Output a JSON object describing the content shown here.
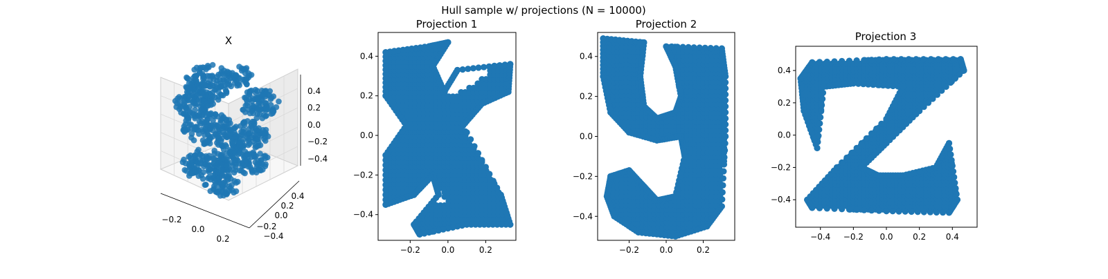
{
  "suptitle": "Hull sample w/ projections (N = 10000)",
  "colors": {
    "points": "#1f77b4",
    "pane": "#f2f2f2",
    "grid": "#d9d9d9"
  },
  "chart_data": [
    {
      "type": "scatter3d",
      "title": "X",
      "xlim": [
        -0.33,
        0.33
      ],
      "ylim": [
        -0.45,
        0.45
      ],
      "zlim": [
        -0.5,
        0.5
      ],
      "xticks": [
        -0.2,
        0.0,
        0.2
      ],
      "yticks": [
        -0.4,
        -0.2,
        0.0,
        0.2,
        0.4
      ],
      "zticks": [
        -0.4,
        -0.2,
        0.0,
        0.2,
        0.4
      ],
      "grid": true
    },
    {
      "type": "scatter",
      "title": "Projection 1",
      "xlim": [
        -0.37,
        0.36
      ],
      "ylim": [
        -0.53,
        0.52
      ],
      "xticks": [
        -0.2,
        0.0,
        0.2
      ],
      "yticks": [
        -0.4,
        -0.2,
        0.0,
        0.2,
        0.4
      ],
      "shape": "letter x",
      "outline": [
        [
          -0.33,
          0.42
        ],
        [
          -0.1,
          0.45
        ],
        [
          0.0,
          0.47
        ],
        [
          -0.08,
          0.35
        ],
        [
          -0.02,
          0.22
        ],
        [
          0.05,
          0.33
        ],
        [
          0.33,
          0.36
        ],
        [
          0.32,
          0.22
        ],
        [
          0.18,
          0.16
        ],
        [
          0.08,
          0.05
        ],
        [
          0.28,
          -0.3
        ],
        [
          0.33,
          -0.45
        ],
        [
          0.1,
          -0.45
        ],
        [
          -0.15,
          -0.5
        ],
        [
          -0.18,
          -0.45
        ],
        [
          -0.05,
          -0.3
        ],
        [
          -0.08,
          -0.2
        ],
        [
          -0.18,
          -0.3
        ],
        [
          -0.33,
          -0.35
        ],
        [
          -0.33,
          -0.1
        ],
        [
          -0.22,
          0.05
        ],
        [
          -0.33,
          0.2
        ]
      ],
      "holes": [
        [
          [
            -0.08,
            0.36
          ],
          [
            0.05,
            0.34
          ],
          [
            0.22,
            0.33
          ],
          [
            0.2,
            0.3
          ],
          [
            0.07,
            0.22
          ],
          [
            0.02,
            0.2
          ],
          [
            -0.02,
            0.22
          ]
        ],
        [
          [
            -0.15,
            -0.28
          ],
          [
            -0.1,
            -0.2
          ],
          [
            -0.05,
            -0.26
          ],
          [
            0.0,
            -0.35
          ],
          [
            -0.08,
            -0.34
          ],
          [
            -0.22,
            -0.36
          ]
        ]
      ]
    },
    {
      "type": "scatter",
      "title": "Projection 2",
      "xlim": [
        -0.37,
        0.37
      ],
      "ylim": [
        -0.52,
        0.52
      ],
      "xticks": [
        -0.2,
        0.0,
        0.2
      ],
      "yticks": [
        -0.4,
        -0.2,
        0.0,
        0.2,
        0.4
      ],
      "shape": "letter y",
      "outline": [
        [
          -0.34,
          0.49
        ],
        [
          -0.12,
          0.47
        ],
        [
          -0.14,
          0.3
        ],
        [
          -0.12,
          0.15
        ],
        [
          -0.05,
          0.09
        ],
        [
          0.05,
          0.12
        ],
        [
          0.08,
          0.2
        ],
        [
          0.05,
          0.35
        ],
        [
          0.0,
          0.45
        ],
        [
          0.3,
          0.44
        ],
        [
          0.32,
          0.3
        ],
        [
          0.32,
          0.0
        ],
        [
          0.3,
          -0.35
        ],
        [
          0.22,
          -0.45
        ],
        [
          0.05,
          -0.5
        ],
        [
          -0.15,
          -0.48
        ],
        [
          -0.28,
          -0.4
        ],
        [
          -0.32,
          -0.3
        ],
        [
          -0.3,
          -0.2
        ],
        [
          -0.2,
          -0.17
        ],
        [
          -0.12,
          -0.25
        ],
        [
          -0.05,
          -0.32
        ],
        [
          0.05,
          -0.3
        ],
        [
          0.1,
          -0.1
        ],
        [
          0.08,
          0.0
        ],
        [
          -0.05,
          -0.02
        ],
        [
          -0.2,
          0.02
        ],
        [
          -0.3,
          0.12
        ],
        [
          -0.34,
          0.3
        ]
      ],
      "holes": [
        [
          [
            -0.14,
            0.42
          ],
          [
            -0.06,
            0.3
          ],
          [
            -0.05,
            0.2
          ],
          [
            -0.05,
            0.1
          ],
          [
            -0.12,
            0.15
          ],
          [
            -0.12,
            0.35
          ]
        ]
      ]
    },
    {
      "type": "scatter",
      "title": "Projection 3",
      "xlim": [
        -0.55,
        0.55
      ],
      "ylim": [
        -0.57,
        0.55
      ],
      "xticks": [
        -0.4,
        -0.2,
        0.0,
        0.2,
        0.4
      ],
      "yticks": [
        -0.4,
        -0.2,
        0.0,
        0.2,
        0.4
      ],
      "shape": "letter z",
      "outline": [
        [
          -0.45,
          0.45
        ],
        [
          0.0,
          0.47
        ],
        [
          0.45,
          0.47
        ],
        [
          0.47,
          0.4
        ],
        [
          0.2,
          0.15
        ],
        [
          0.0,
          -0.05
        ],
        [
          -0.15,
          -0.2
        ],
        [
          -0.05,
          -0.25
        ],
        [
          0.1,
          -0.25
        ],
        [
          0.3,
          -0.2
        ],
        [
          0.38,
          -0.05
        ],
        [
          0.43,
          -0.4
        ],
        [
          0.38,
          -0.48
        ],
        [
          0.0,
          -0.47
        ],
        [
          -0.45,
          -0.45
        ],
        [
          -0.48,
          -0.4
        ],
        [
          -0.3,
          -0.2
        ],
        [
          0.0,
          0.1
        ],
        [
          0.1,
          0.3
        ],
        [
          -0.2,
          0.32
        ],
        [
          -0.38,
          0.3
        ],
        [
          -0.42,
          -0.08
        ],
        [
          -0.5,
          0.15
        ],
        [
          -0.52,
          0.35
        ]
      ],
      "holes": []
    }
  ]
}
